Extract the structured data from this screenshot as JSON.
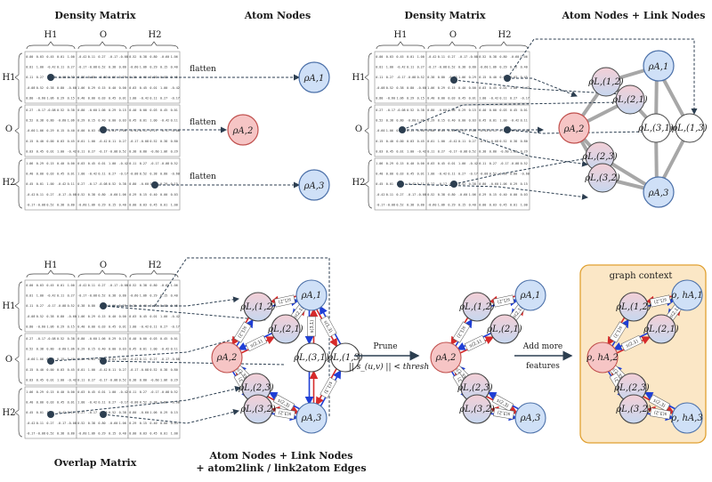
{
  "panels": {
    "top_left": {
      "matrix_title": "Density Matrix",
      "nodes_title": "Atom Nodes",
      "col_labels": [
        "H1",
        "O",
        "H2"
      ],
      "row_labels": [
        "H1",
        "O",
        "H2"
      ],
      "flatten_labels": [
        "flatten",
        "flatten",
        "flatten"
      ]
    },
    "top_right": {
      "matrix_title": "Density Matrix",
      "nodes_title": "Atom Nodes + Link Nodes",
      "col_labels": [
        "H1",
        "O",
        "H2"
      ],
      "row_labels": [
        "H1",
        "O",
        "H2"
      ]
    },
    "bottom_left": {
      "matrix_title": "Overlap Matrix",
      "col_labels": [
        "H1",
        "O",
        "H2"
      ],
      "row_labels": [
        "H1",
        "O",
        "H2"
      ],
      "caption_line1": "Atom Nodes + Link Nodes",
      "caption_line2": "+ atom2link / link2atom Edges"
    },
    "prune": {
      "label": "Prune",
      "condition": "|| s_(u,v) || < thresh"
    },
    "add_more": {
      "label_line1": "Add more",
      "label_line2": "features"
    },
    "graph_context": {
      "title": "graph context"
    }
  },
  "node_labels": {
    "A1": "ρA,1",
    "A2": "ρA,2",
    "A3": "ρA,3",
    "L12": "ρL,(1,2)",
    "L21": "ρL,(2,1)",
    "L31": "ρL,(3,1)",
    "L13": "ρL,(1,3)",
    "L23": "ρL,(2,3)",
    "L32": "ρL,(3,2)"
  },
  "context_node_labels": {
    "A1": "ρ, hA,1",
    "A2": "ρ, hA,2",
    "A3": "ρ, hA,3"
  },
  "edge_labels": {
    "e1": "s(1,2)",
    "e2": "s(2,1)",
    "e3": "s(1,3)",
    "e4": "s(3,1)",
    "e5": "s(2,3)",
    "e6": "s(3,2)"
  },
  "matrix_sample_values": [
    "0.00",
    "0.03",
    "0.45",
    "0.01",
    "1.00",
    "-0.42",
    "0.11",
    "0.27",
    "-0.17",
    "-0.08",
    "0.52",
    "0.38",
    "0.80",
    "-0.60",
    "1.06",
    "0.29",
    "0.15",
    "0.40"
  ],
  "colors": {
    "atom_node": "#cfe0f7",
    "atom_node_stroke": "#4a6fa8",
    "central_node": "#f6c5c5",
    "central_node_stroke": "#c0504d",
    "link_node_top": "#f2d0d6",
    "link_node_bottom": "#c9d8f0",
    "context_bg": "#fbe7c6",
    "context_border": "#e0a030",
    "red_arrow": "#d62a2a",
    "blue_arrow": "#1f3fd6"
  }
}
